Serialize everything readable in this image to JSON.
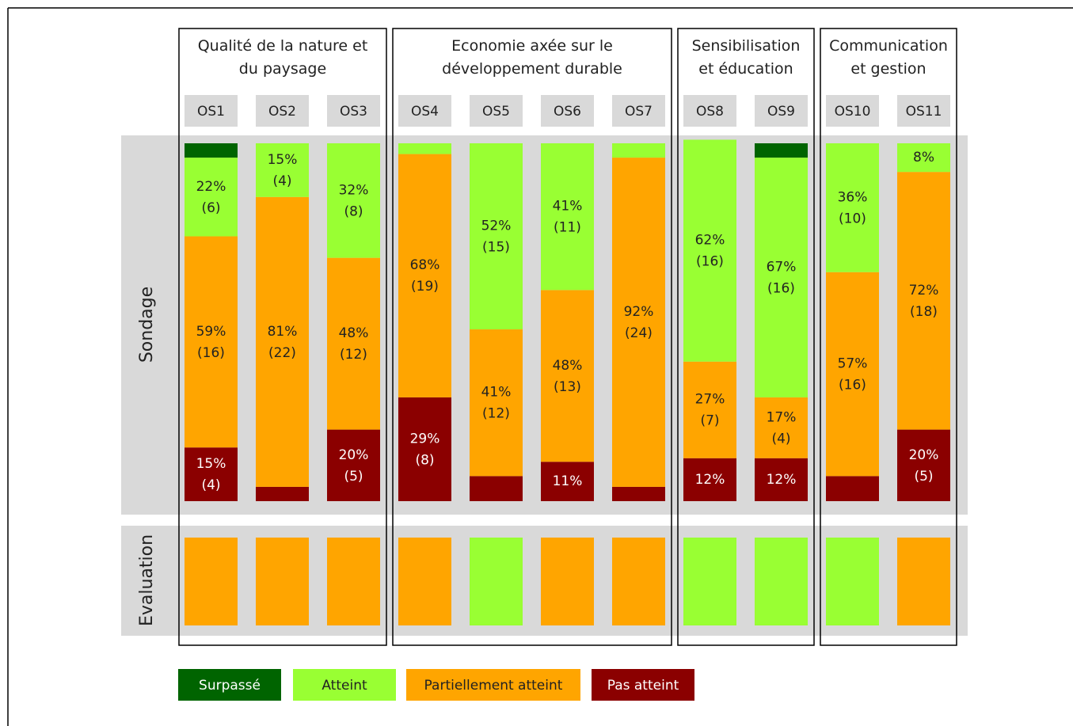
{
  "chart_data": {
    "type": "bar",
    "stacked": true,
    "row_labels": [
      "Sondage",
      "Evaluation"
    ],
    "categories": [
      "OS1",
      "OS2",
      "OS3",
      "OS4",
      "OS5",
      "OS6",
      "OS7",
      "OS8",
      "OS9",
      "OS10",
      "OS11"
    ],
    "groups": [
      {
        "label": "Qualité de la nature et du paysage",
        "members": [
          "OS1",
          "OS2",
          "OS3"
        ]
      },
      {
        "label": "Economie axée sur le développement durable",
        "members": [
          "OS4",
          "OS5",
          "OS6",
          "OS7"
        ]
      },
      {
        "label": "Sensibilisation et éducation",
        "members": [
          "OS8",
          "OS9"
        ]
      },
      {
        "label": "Communication et gestion",
        "members": [
          "OS10",
          "OS11"
        ]
      }
    ],
    "series": [
      {
        "name": "Surpassé",
        "color": "#006400",
        "text_color": "#ffffff",
        "values": [
          4,
          0,
          0,
          0,
          0,
          0,
          0,
          0,
          4,
          0,
          0
        ],
        "value_labels": [
          null,
          null,
          null,
          null,
          null,
          null,
          null,
          null,
          null,
          null,
          null
        ],
        "count_labels": [
          null,
          null,
          null,
          null,
          null,
          null,
          null,
          null,
          null,
          null,
          null
        ]
      },
      {
        "name": "Atteint",
        "color": "#99ff33",
        "text_color": "#222222",
        "values": [
          22,
          15,
          32,
          3,
          52,
          41,
          4,
          62,
          67,
          36,
          8
        ],
        "value_labels": [
          "22%",
          "15%",
          "32%",
          null,
          "52%",
          "41%",
          null,
          "62%",
          "67%",
          "36%",
          "8%"
        ],
        "count_labels": [
          "(6)",
          "(4)",
          "(8)",
          null,
          "(15)",
          "(11)",
          null,
          "(16)",
          "(16)",
          "(10)",
          null
        ]
      },
      {
        "name": "Partiellement atteint",
        "color": "#ffa500",
        "text_color": "#222222",
        "values": [
          59,
          81,
          48,
          68,
          41,
          48,
          92,
          27,
          17,
          57,
          72
        ],
        "value_labels": [
          "59%",
          "81%",
          "48%",
          "68%",
          "41%",
          "48%",
          "92%",
          "27%",
          "17%",
          "57%",
          "72%"
        ],
        "count_labels": [
          "(16)",
          "(22)",
          "(12)",
          "(19)",
          "(12)",
          "(13)",
          "(24)",
          "(7)",
          "(4)",
          "(16)",
          "(18)"
        ]
      },
      {
        "name": "Pas atteint",
        "color": "#8b0000",
        "text_color": "#ffffff",
        "values": [
          15,
          4,
          20,
          29,
          7,
          11,
          4,
          12,
          12,
          7,
          20
        ],
        "value_labels": [
          "15%",
          null,
          "20%",
          "29%",
          null,
          "11%",
          null,
          "12%",
          "12%",
          null,
          "20%"
        ],
        "count_labels": [
          "(4)",
          null,
          "(5)",
          "(8)",
          null,
          null,
          null,
          null,
          null,
          null,
          "(5)"
        ]
      }
    ],
    "evaluation_colors": [
      "#ffa500",
      "#ffa500",
      "#ffa500",
      "#ffa500",
      "#99ff33",
      "#ffa500",
      "#ffa500",
      "#99ff33",
      "#99ff33",
      "#99ff33",
      "#ffa500"
    ]
  }
}
